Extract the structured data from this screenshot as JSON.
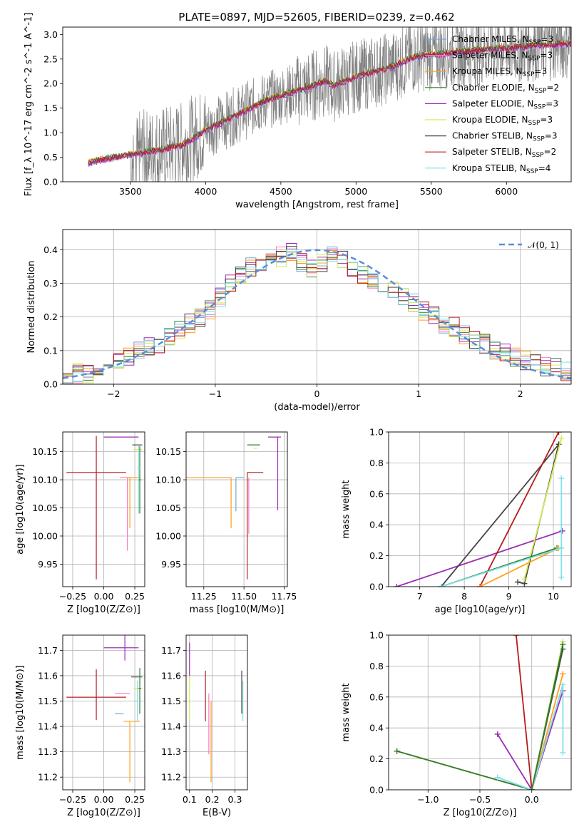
{
  "title": "PLATE=0897, MJD=52605, FIBERID=0239, z=0.462",
  "colors": {
    "Chabrier MILES": "#6fa8dc",
    "Salpeter MILES": "#ff79c6",
    "Kroupa MILES": "#ff9f1a",
    "Chabrier ELODIE": "#2f7f2f",
    "Salpeter ELODIE": "#9b2fb5",
    "Kroupa ELODIE": "#d4ec56",
    "Chabrier STELIB": "#444444",
    "Salpeter STELIB": "#b71c1c",
    "Kroupa STELIB": "#7fe0e6",
    "data": "#808080",
    "normal": "#5b8dd9"
  },
  "chart_data": [
    {
      "type": "line",
      "id": "spectrum",
      "xlabel": "wavelength [Angstrom, rest frame]",
      "ylabel": "Flux [f_λ 10^-17 erg cm^-2 s^-1 A^-1]",
      "xlim": [
        3050,
        6430
      ],
      "ylim": [
        0,
        3.15
      ],
      "xticks": [
        3500,
        4000,
        4500,
        5000,
        5500,
        6000
      ],
      "yticks": [
        0.0,
        0.5,
        1.0,
        1.5,
        2.0,
        2.5,
        3.0
      ],
      "model_continuum": {
        "x": [
          3220,
          3300,
          3500,
          3700,
          3850,
          4000,
          4200,
          4400,
          4600,
          4800,
          4850,
          5000,
          5200,
          5400,
          5600,
          5800,
          6000,
          6200,
          6430
        ],
        "y": [
          0.38,
          0.45,
          0.55,
          0.65,
          0.75,
          1.05,
          1.35,
          1.65,
          1.85,
          2.05,
          1.95,
          2.15,
          2.3,
          2.55,
          2.62,
          2.68,
          2.72,
          2.78,
          2.82
        ]
      },
      "data_spectrum_range": {
        "xstart": 3220,
        "xend": 6430,
        "scatter": "high"
      },
      "legend": [
        {
          "label": "Chabrier MILES, N",
          "sub": "SSP",
          "n": "=3",
          "key": "Chabrier MILES"
        },
        {
          "label": "Salpeter MILES, N",
          "sub": "SSP",
          "n": "=3",
          "key": "Salpeter MILES"
        },
        {
          "label": "Kroupa MILES, N",
          "sub": "SSP",
          "n": "=3",
          "key": "Kroupa MILES"
        },
        {
          "label": "Chabrier ELODIE, N",
          "sub": "SSP",
          "n": "=2",
          "key": "Chabrier ELODIE"
        },
        {
          "label": "Salpeter ELODIE, N",
          "sub": "SSP",
          "n": "=3",
          "key": "Salpeter ELODIE"
        },
        {
          "label": "Kroupa ELODIE, N",
          "sub": "SSP",
          "n": "=3",
          "key": "Kroupa ELODIE"
        },
        {
          "label": "Chabrier STELIB, N",
          "sub": "SSP",
          "n": "=3",
          "key": "Chabrier STELIB"
        },
        {
          "label": "Salpeter STELIB, N",
          "sub": "SSP",
          "n": "=2",
          "key": "Salpeter STELIB"
        },
        {
          "label": "Kroupa STELIB, N",
          "sub": "SSP",
          "n": "=4",
          "key": "Kroupa STELIB"
        }
      ]
    },
    {
      "type": "line",
      "id": "residuals",
      "xlabel": "(data-model)/error",
      "ylabel": "Normed distribution",
      "xlim": [
        -2.5,
        2.5
      ],
      "ylim": [
        0,
        0.46
      ],
      "xticks": [
        -2,
        -1,
        0,
        1,
        2
      ],
      "yticks": [
        0.0,
        0.1,
        0.2,
        0.3,
        0.4
      ],
      "legend": [
        "𝒩(0, 1)"
      ],
      "grid": true,
      "histogram_shape": {
        "bin_width": 0.1,
        "centers": [
          -2.45,
          -2.35,
          -2.25,
          -2.15,
          -2.05,
          -1.95,
          -1.85,
          -1.75,
          -1.65,
          -1.55,
          -1.45,
          -1.35,
          -1.25,
          -1.15,
          -1.05,
          -0.95,
          -0.85,
          -0.75,
          -0.65,
          -0.55,
          -0.45,
          -0.35,
          -0.25,
          -0.15,
          -0.05,
          0.05,
          0.15,
          0.25,
          0.35,
          0.45,
          0.55,
          0.65,
          0.75,
          0.85,
          0.95,
          1.05,
          1.15,
          1.25,
          1.35,
          1.45,
          1.55,
          1.65,
          1.75,
          1.85,
          1.95,
          2.05,
          2.15,
          2.25,
          2.35,
          2.45
        ],
        "values": [
          0.02,
          0.03,
          0.03,
          0.05,
          0.06,
          0.07,
          0.08,
          0.1,
          0.11,
          0.12,
          0.14,
          0.16,
          0.18,
          0.2,
          0.22,
          0.26,
          0.3,
          0.33,
          0.35,
          0.36,
          0.37,
          0.38,
          0.39,
          0.36,
          0.34,
          0.36,
          0.38,
          0.37,
          0.35,
          0.33,
          0.31,
          0.3,
          0.28,
          0.26,
          0.24,
          0.22,
          0.2,
          0.18,
          0.17,
          0.15,
          0.13,
          0.12,
          0.1,
          0.09,
          0.08,
          0.07,
          0.06,
          0.05,
          0.05,
          0.04
        ]
      }
    },
    {
      "type": "scatter",
      "id": "age-vs-Z",
      "xlabel": "Z [log10(Z/Z⊙)]",
      "ylabel": "age  [log10(age/yr)]",
      "xlim": [
        -0.33,
        0.33
      ],
      "ylim": [
        9.91,
        10.185
      ],
      "xticks": [
        -0.25,
        0.0,
        0.25
      ],
      "yticks": [
        9.95,
        10.0,
        10.05,
        10.1,
        10.15
      ],
      "points": [
        {
          "key": "Salpeter STELIB",
          "x": -0.06,
          "xerr": [
            0.24,
            0.24
          ],
          "y": 10.113,
          "yerr": [
            0.19,
            0.065
          ]
        },
        {
          "key": "Salpeter ELODIE",
          "x": 0.17,
          "xerr": [
            0.17,
            0.11
          ],
          "y": 10.176,
          "yerr": [
            0.0,
            0.0
          ]
        },
        {
          "key": "Chabrier STELIB",
          "x": 0.27,
          "xerr": [
            0.04,
            0.04
          ],
          "y": 10.162,
          "yerr": [
            0.0,
            0.0
          ]
        },
        {
          "key": "Kroupa ELODIE",
          "x": 0.28,
          "xerr": [
            0.04,
            0.03
          ],
          "y": 10.154,
          "yerr": [
            0.0,
            0.0
          ]
        },
        {
          "key": "Salpeter MILES",
          "x": 0.19,
          "xerr": [
            0.06,
            0.05
          ],
          "y": 10.104,
          "yerr": [
            0.13,
            0.0
          ]
        },
        {
          "key": "Kroupa MILES",
          "x": 0.21,
          "xerr": [
            0.04,
            0.08
          ],
          "y": 10.104,
          "yerr": [
            0.09,
            0.0
          ]
        },
        {
          "key": "Chabrier ELODIE",
          "x": 0.29,
          "xerr": [
            0.01,
            0.01
          ],
          "y": 10.1,
          "yerr": [
            0.06,
            0.06
          ]
        },
        {
          "key": "Kroupa STELIB",
          "x": 0.28,
          "xerr": [
            0.01,
            0.01
          ],
          "y": 10.12,
          "yerr": [
            0.08,
            0.04
          ]
        }
      ]
    },
    {
      "type": "scatter",
      "id": "age-vs-mass",
      "xlabel": "mass [log10(M/M⊙)]",
      "ylabel": "",
      "xlim": [
        11.14,
        11.77
      ],
      "ylim": [
        9.91,
        10.185
      ],
      "xticks": [
        11.25,
        11.5,
        11.75
      ],
      "yticks": [
        9.95,
        10.0,
        10.05,
        10.1,
        10.15
      ],
      "points": [
        {
          "key": "Kroupa MILES",
          "x": 11.42,
          "xerr": [
            0.28,
            0.0
          ],
          "y": 10.104,
          "yerr": [
            0.09,
            0.0
          ]
        },
        {
          "key": "Chabrier MILES",
          "x": 11.45,
          "xerr": [
            0.0,
            0.05
          ],
          "y": 10.104,
          "yerr": [
            0.06,
            0.0
          ]
        },
        {
          "key": "Salpeter MILES",
          "x": 11.53,
          "xerr": [
            0.0,
            0.0
          ],
          "y": 10.104,
          "yerr": [
            0.1,
            0.0
          ]
        },
        {
          "key": "Salpeter STELIB",
          "x": 11.52,
          "xerr": [
            0.0,
            0.1
          ],
          "y": 10.113,
          "yerr": [
            0.19,
            0.0
          ]
        },
        {
          "key": "Chabrier ELODIE",
          "x": 11.6,
          "xerr": [
            0.08,
            0.0
          ],
          "y": 10.162,
          "yerr": [
            0.0,
            0.0
          ]
        },
        {
          "key": "Kroupa ELODIE",
          "x": 11.56,
          "xerr": [
            0.0,
            0.02
          ],
          "y": 10.156,
          "yerr": [
            0.0,
            0.0
          ]
        },
        {
          "key": "Salpeter ELODIE",
          "x": 11.71,
          "xerr": [
            0.06,
            0.02
          ],
          "y": 10.176,
          "yerr": [
            0.13,
            0.0
          ]
        }
      ]
    },
    {
      "type": "line",
      "id": "mass-weight-vs-age",
      "xlabel": "age  [log10(age/yr)]",
      "ylabel": "mass weight",
      "xlim": [
        6.3,
        10.4
      ],
      "ylim": [
        0,
        1.0
      ],
      "xticks": [
        7,
        8,
        9,
        10
      ],
      "yticks": [
        0.0,
        0.2,
        0.4,
        0.6,
        0.8,
        1.0
      ],
      "grid": true,
      "series": [
        {
          "key": "Salpeter ELODIE",
          "x": [
            6.48,
            10.2
          ],
          "y": [
            0.0,
            0.36
          ]
        },
        {
          "key": "Chabrier STELIB",
          "x": [
            7.48,
            10.12
          ],
          "y": [
            0.0,
            0.92
          ]
        },
        {
          "key": "Chabrier STELIB",
          "x": [
            9.2,
            9.35,
            10.12
          ],
          "y": [
            0.03,
            0.02,
            0.92
          ]
        },
        {
          "key": "Salpeter STELIB",
          "x": [
            8.35,
            10.12
          ],
          "y": [
            0.0,
            1.0
          ]
        },
        {
          "key": "Kroupa ELODIE",
          "x": [
            9.35,
            10.18
          ],
          "y": [
            0.05,
            0.96
          ]
        },
        {
          "key": "Chabrier ELODIE",
          "x": [
            7.48,
            10.08
          ],
          "y": [
            0.0,
            0.25
          ]
        },
        {
          "key": "Kroupa MILES",
          "x": [
            8.35,
            10.12
          ],
          "y": [
            0.0,
            0.25
          ]
        },
        {
          "key": "Kroupa STELIB",
          "x": [
            7.48,
            10.18
          ],
          "y": [
            0.0,
            0.25
          ]
        },
        {
          "key": "Kroupa STELIB",
          "x": [
            10.18,
            10.18
          ],
          "y": [
            0.06,
            0.7
          ]
        }
      ]
    },
    {
      "type": "scatter",
      "id": "mass-vs-Z",
      "xlabel": "Z [log10(Z/Z⊙)]",
      "ylabel": "mass [log10(M/M⊙)]",
      "xlim": [
        -0.33,
        0.33
      ],
      "ylim": [
        11.15,
        11.76
      ],
      "xticks": [
        -0.25,
        0.0,
        0.25
      ],
      "yticks": [
        11.2,
        11.3,
        11.4,
        11.5,
        11.6,
        11.7
      ],
      "points": [
        {
          "key": "Salpeter STELIB",
          "x": -0.06,
          "xerr": [
            0.24,
            0.24
          ],
          "y": 11.515,
          "yerr": [
            0.09,
            0.11
          ]
        },
        {
          "key": "Salpeter ELODIE",
          "x": 0.17,
          "xerr": [
            0.17,
            0.11
          ],
          "y": 11.71,
          "yerr": [
            0.05,
            0.05
          ]
        },
        {
          "key": "Chabrier STELIB",
          "x": 0.27,
          "xerr": [
            0.05,
            0.04
          ],
          "y": 11.595,
          "yerr": [
            0.0,
            0.0
          ]
        },
        {
          "key": "Kroupa ELODIE",
          "x": 0.28,
          "xerr": [
            0.04,
            0.03
          ],
          "y": 11.55,
          "yerr": [
            0.0,
            0.0
          ]
        },
        {
          "key": "Salpeter MILES",
          "x": 0.15,
          "xerr": [
            0.06,
            0.06
          ],
          "y": 11.53,
          "yerr": [
            0.0,
            0.0
          ]
        },
        {
          "key": "Chabrier MILES",
          "x": 0.11,
          "xerr": [
            0.02,
            0.05
          ],
          "y": 11.45,
          "yerr": [
            0.0,
            0.0
          ]
        },
        {
          "key": "Kroupa MILES",
          "x": 0.21,
          "xerr": [
            0.05,
            0.08
          ],
          "y": 11.42,
          "yerr": [
            0.24,
            0.0
          ]
        },
        {
          "key": "Chabrier ELODIE",
          "x": 0.29,
          "xerr": [
            0.01,
            0.01
          ],
          "y": 11.55,
          "yerr": [
            0.1,
            0.08
          ]
        },
        {
          "key": "Kroupa STELIB",
          "x": 0.27,
          "xerr": [
            0.02,
            0.02
          ],
          "y": 11.5,
          "yerr": [
            0.08,
            0.08
          ]
        }
      ]
    },
    {
      "type": "scatter",
      "id": "mass-vs-EBV",
      "xlabel": "E(B-V)",
      "ylabel": "",
      "xlim": [
        0.085,
        0.355
      ],
      "ylim": [
        11.15,
        11.76
      ],
      "xticks": [
        0.1,
        0.2,
        0.3
      ],
      "yticks": [
        11.2,
        11.3,
        11.4,
        11.5,
        11.6,
        11.7
      ],
      "points": [
        {
          "key": "Salpeter ELODIE",
          "x": 0.1,
          "yerr": [
            11.6,
            11.73
          ]
        },
        {
          "key": "Kroupa ELODIE",
          "x": 0.1,
          "yerr": [
            11.43,
            11.6
          ]
        },
        {
          "key": "Salpeter STELIB",
          "x": 0.17,
          "yerr": [
            11.42,
            11.62
          ]
        },
        {
          "key": "Salpeter MILES",
          "x": 0.185,
          "yerr": [
            11.29,
            11.53
          ]
        },
        {
          "key": "Kroupa MILES",
          "x": 0.195,
          "yerr": [
            11.18,
            11.5
          ]
        },
        {
          "key": "Chabrier STELIB",
          "x": 0.33,
          "yerr": [
            11.45,
            11.62
          ]
        },
        {
          "key": "Kroupa STELIB",
          "x": 0.335,
          "yerr": [
            11.42,
            11.58
          ]
        }
      ]
    },
    {
      "type": "line",
      "id": "mass-weight-vs-Z",
      "xlabel": "Z [log10(Z/Z⊙)]",
      "ylabel": "mass weight",
      "xlim": [
        -1.38,
        0.38
      ],
      "ylim": [
        0,
        1.0
      ],
      "xticks": [
        -1.0,
        -0.5,
        0.0
      ],
      "yticks": [
        0.0,
        0.2,
        0.4,
        0.6,
        0.8,
        1.0
      ],
      "grid": true,
      "series": [
        {
          "key": "Kroupa MILES",
          "x": [
            -1.3,
            0.0,
            0.3
          ],
          "y": [
            0.25,
            0.0,
            0.75
          ]
        },
        {
          "key": "Chabrier ELODIE",
          "x": [
            -1.3,
            0.0
          ],
          "y": [
            0.25,
            0.0
          ]
        },
        {
          "key": "Salpeter ELODIE",
          "x": [
            -0.33,
            0.0,
            0.3
          ],
          "y": [
            0.36,
            0.0,
            0.64
          ]
        },
        {
          "key": "Kroupa STELIB",
          "x": [
            -0.33,
            0.0,
            0.3,
            0.3
          ],
          "y": [
            0.08,
            0.0,
            0.68,
            0.24
          ]
        },
        {
          "key": "Salpeter STELIB",
          "x": [
            -0.15,
            0.0
          ],
          "y": [
            1.0,
            0.0
          ]
        },
        {
          "key": "Chabrier STELIB",
          "x": [
            0.0,
            0.3
          ],
          "y": [
            0.0,
            0.91
          ]
        },
        {
          "key": "Kroupa ELODIE",
          "x": [
            0.0,
            0.3
          ],
          "y": [
            0.0,
            0.96
          ]
        },
        {
          "key": "Chabrier ELODIE",
          "x": [
            0.0,
            0.3
          ],
          "y": [
            0.0,
            0.94
          ]
        }
      ]
    }
  ]
}
